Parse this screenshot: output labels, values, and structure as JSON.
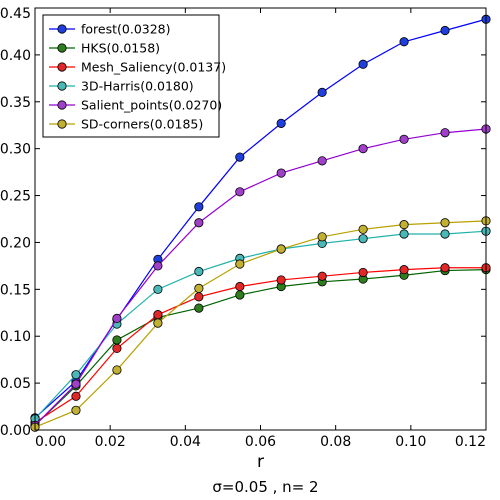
{
  "chart_data": {
    "type": "line",
    "xlabel": "r",
    "caption": "σ=0.05  , n= 2",
    "xlim": [
      0,
      0.12
    ],
    "ylim": [
      0,
      0.45
    ],
    "xticks": [
      0.0,
      0.02,
      0.04,
      0.06,
      0.08,
      0.1,
      0.12
    ],
    "xtick_labels": [
      "0.00",
      "0.02",
      "0.04",
      "0.06",
      "0.08",
      "0.10",
      "0.12"
    ],
    "yticks": [
      0.0,
      0.05,
      0.1,
      0.15,
      0.2,
      0.25,
      0.3,
      0.35,
      0.4,
      0.45
    ],
    "ytick_labels": [
      "0.00",
      "0.05",
      "0.10",
      "0.15",
      "0.20",
      "0.25",
      "0.30",
      "0.35",
      "0.40",
      "0.45"
    ],
    "legend_position": "top-left",
    "grid": false,
    "x": [
      0.0,
      0.0109,
      0.0218,
      0.0327,
      0.0436,
      0.0545,
      0.0655,
      0.0764,
      0.0873,
      0.0982,
      0.1091,
      0.12
    ],
    "series": [
      {
        "name": "forest(0.0328)",
        "color": "#0000ff",
        "marker": "#1f3fdc",
        "values": [
          0.013,
          0.052,
          0.118,
          0.182,
          0.238,
          0.291,
          0.327,
          0.36,
          0.39,
          0.414,
          0.426,
          0.438
        ]
      },
      {
        "name": "HKS(0.0158)",
        "color": "#006400",
        "marker": "#2e7d1e",
        "values": [
          0.005,
          0.047,
          0.096,
          0.12,
          0.13,
          0.144,
          0.153,
          0.158,
          0.161,
          0.165,
          0.17,
          0.171
        ]
      },
      {
        "name": "Mesh_Saliency(0.0137)",
        "color": "#ff0000",
        "marker": "#e02828",
        "values": [
          0.008,
          0.036,
          0.087,
          0.123,
          0.142,
          0.153,
          0.16,
          0.164,
          0.168,
          0.171,
          0.173,
          0.173
        ]
      },
      {
        "name": "3D-Harris(0.0180)",
        "color": "#20b2aa",
        "marker": "#4bb8b8",
        "values": [
          0.012,
          0.059,
          0.113,
          0.15,
          0.169,
          0.183,
          0.193,
          0.199,
          0.204,
          0.209,
          0.209,
          0.212
        ]
      },
      {
        "name": "Salient_points(0.0270)",
        "color": "#9400d3",
        "marker": "#a040c8",
        "values": [
          0.005,
          0.049,
          0.119,
          0.175,
          0.221,
          0.254,
          0.274,
          0.287,
          0.3,
          0.31,
          0.317,
          0.321
        ]
      },
      {
        "name": "SD-corners(0.0185)",
        "color": "#b8a000",
        "marker": "#c2b033",
        "values": [
          0.003,
          0.021,
          0.064,
          0.114,
          0.151,
          0.177,
          0.193,
          0.206,
          0.214,
          0.219,
          0.221,
          0.223
        ]
      }
    ]
  }
}
